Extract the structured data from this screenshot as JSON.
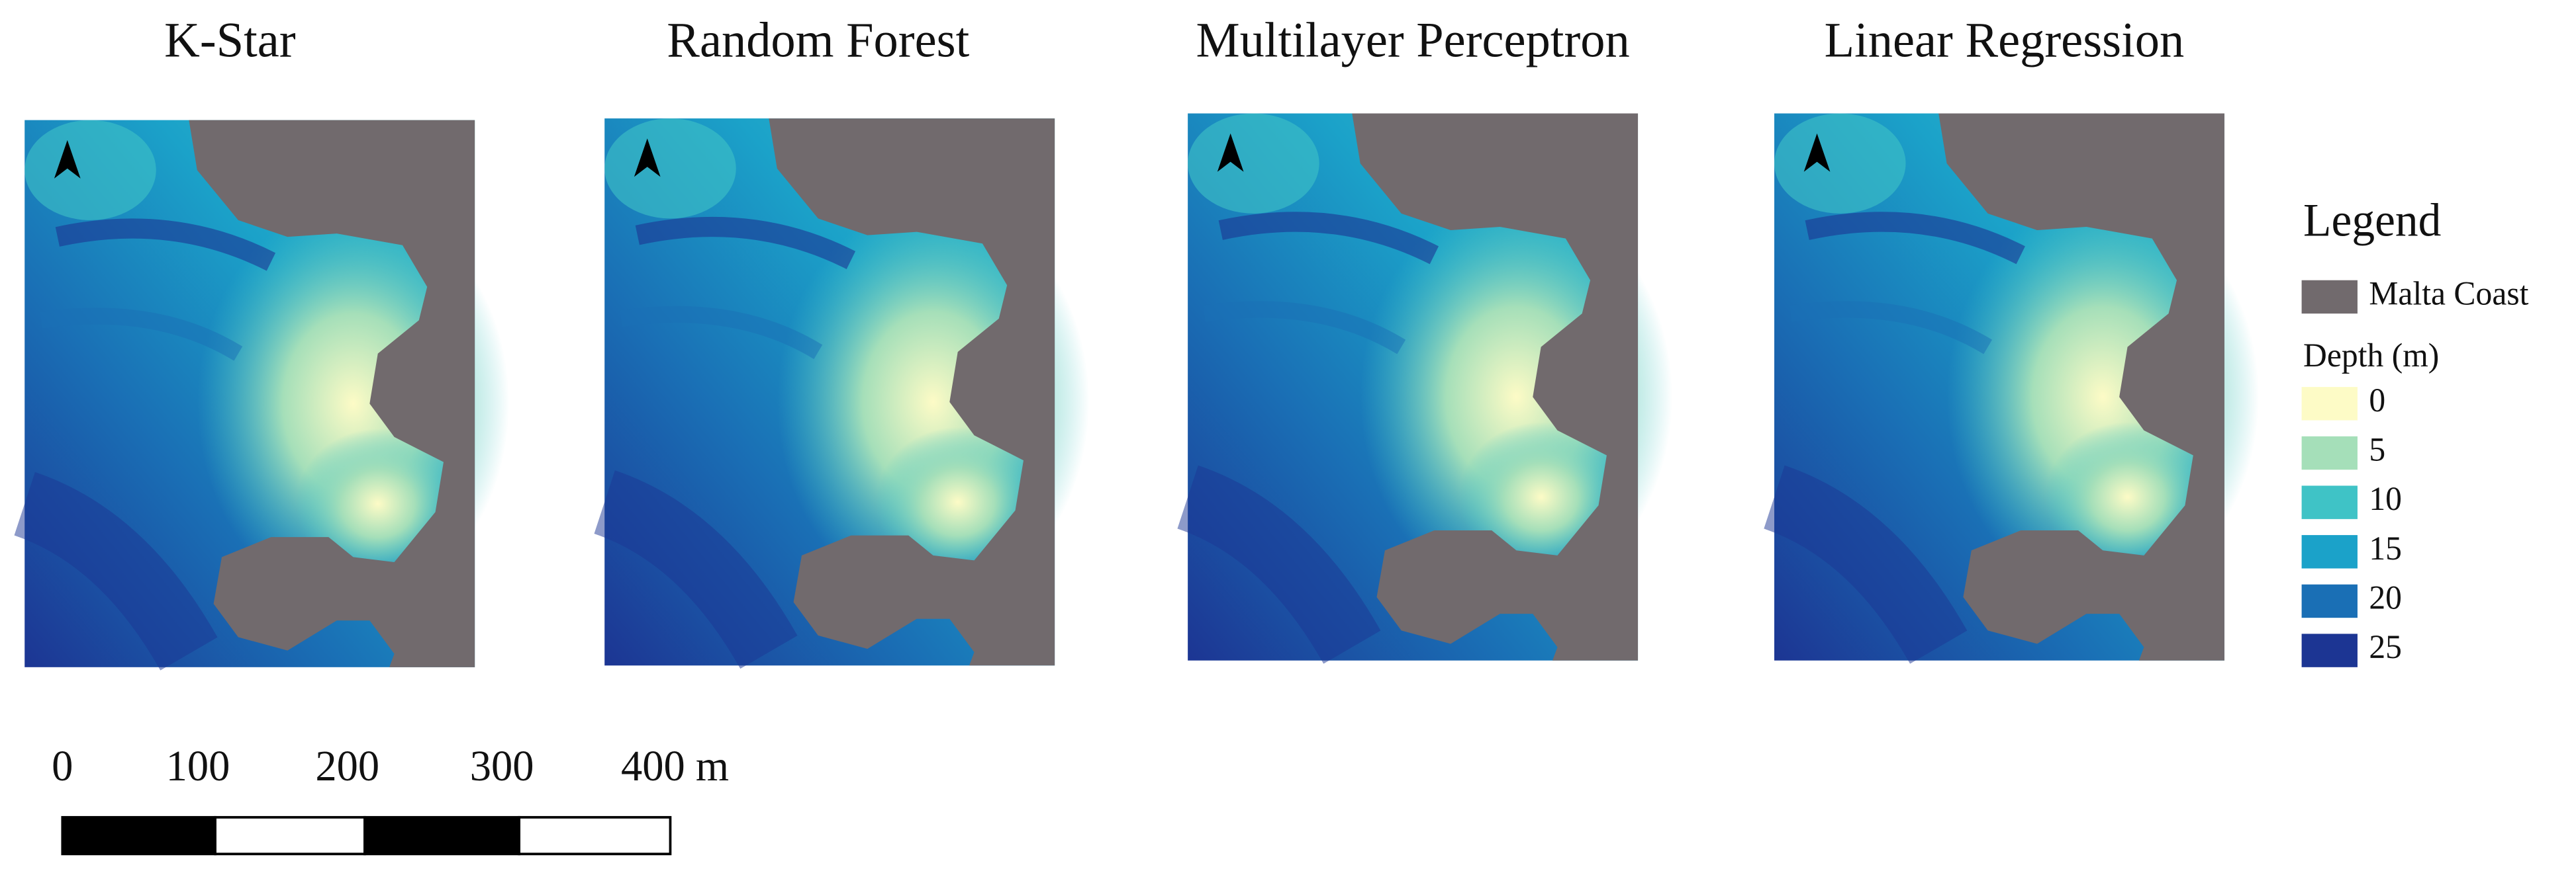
{
  "panels": [
    {
      "title": "K-Star"
    },
    {
      "title": "Random Forest"
    },
    {
      "title": "Multilayer Perceptron"
    },
    {
      "title": "Linear Regression"
    }
  ],
  "legend": {
    "title": "Legend",
    "coast": {
      "label": "Malta Coast",
      "color": "#716a6d"
    },
    "depth_title": "Depth (m)",
    "depth_classes": [
      {
        "label": 0,
        "color": "#fdfbc6"
      },
      {
        "label": 5,
        "color": "#a5dfb9"
      },
      {
        "label": 10,
        "color": "#3fc3c6"
      },
      {
        "label": 15,
        "color": "#1ba2c9"
      },
      {
        "label": 20,
        "color": "#1a6fb5"
      },
      {
        "label": 25,
        "color": "#1c3593"
      }
    ]
  },
  "scale_bar": {
    "labels": [
      0,
      100,
      200,
      300,
      "400 m"
    ]
  }
}
